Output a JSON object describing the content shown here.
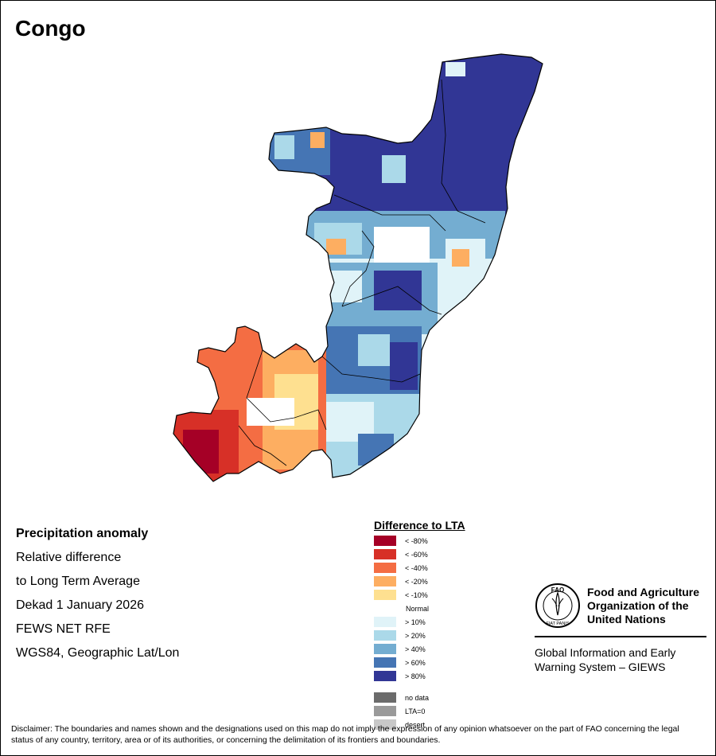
{
  "title": "Congo",
  "info": {
    "heading": "Precipitation anomaly",
    "line1": "Relative difference",
    "line2": "to Long Term Average",
    "period": "Dekad 1 January 2026",
    "source": "FEWS NET RFE",
    "projection": "WGS84, Geographic Lat/Lon"
  },
  "legend": {
    "title": "Difference to LTA",
    "items": [
      {
        "label": "< -80%",
        "color": "#a50026"
      },
      {
        "label": "< -60%",
        "color": "#d73027"
      },
      {
        "label": "< -40%",
        "color": "#f46d43"
      },
      {
        "label": "< -20%",
        "color": "#fdae61"
      },
      {
        "label": "< -10%",
        "color": "#fee090"
      },
      {
        "label": "Normal",
        "color": "#ffffff"
      },
      {
        "label": "> 10%",
        "color": "#e0f3f8"
      },
      {
        "label": "> 20%",
        "color": "#abd9e9"
      },
      {
        "label": "> 40%",
        "color": "#74add1"
      },
      {
        "label": "> 60%",
        "color": "#4575b4"
      },
      {
        "label": "> 80%",
        "color": "#313695"
      }
    ],
    "extra": [
      {
        "label": "no data",
        "color": "#6b6b6b"
      },
      {
        "label": "LTA=0",
        "color": "#9a9a9a"
      },
      {
        "label": "desert",
        "color": "#c8c8c8"
      }
    ]
  },
  "fao": {
    "name_line1": "Food and Agriculture",
    "name_line2": "Organization of the",
    "name_line3": "United Nations",
    "acronym": "FAO",
    "motto": "FIAT PANIS",
    "giews_line1": "Global Information and Early",
    "giews_line2": "Warning System – GIEWS"
  },
  "disclaimer": "Disclaimer: The boundaries and names shown and the designations used on this map do not imply the expression of any opinion whatsoever on the part of FAO concerning the legal status of any country, territory, area or of its authorities, or concerning the delimitation of its frontiers and boundaries."
}
